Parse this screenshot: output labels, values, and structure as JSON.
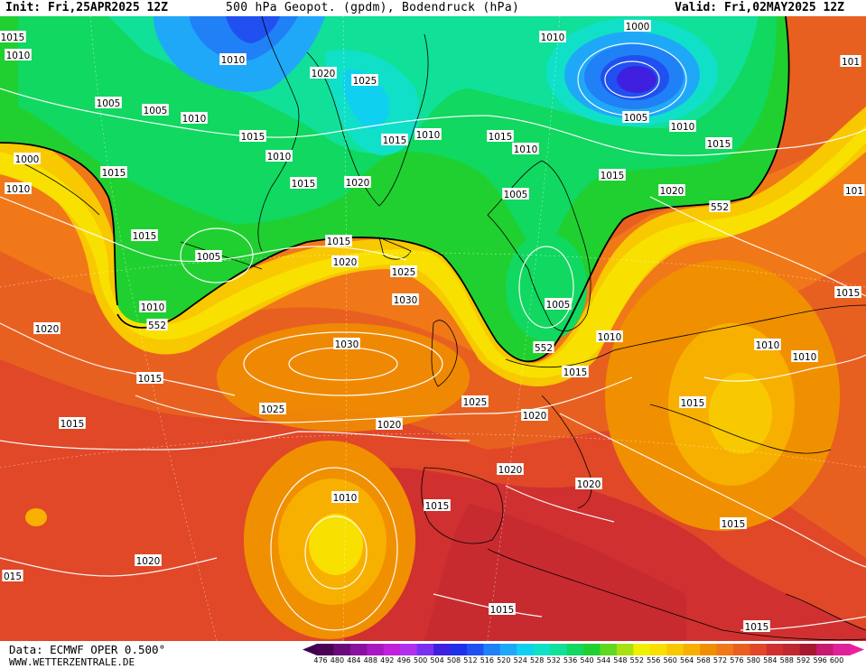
{
  "header": {
    "init": "Init: Fri,25APR2025 12Z",
    "title": "500 hPa Geopot. (gpdm), Bodendruck (hPa)",
    "valid": "Valid: Fri,02MAY2025 12Z"
  },
  "footer": {
    "data_source": "Data: ECMWF OPER 0.500°",
    "website": "WWW.WETTERZENTRALE.DE"
  },
  "legend": {
    "values": [
      "476",
      "480",
      "484",
      "488",
      "492",
      "496",
      "500",
      "504",
      "508",
      "512",
      "516",
      "520",
      "524",
      "528",
      "532",
      "536",
      "540",
      "544",
      "548",
      "552",
      "556",
      "560",
      "564",
      "568",
      "572",
      "576",
      "580",
      "584",
      "588",
      "592",
      "596",
      "600"
    ],
    "colors": [
      "#4b0055",
      "#6a0a7a",
      "#8a10a0",
      "#a818c2",
      "#c020dc",
      "#b030f0",
      "#7a30f0",
      "#4020e0",
      "#2030e8",
      "#2050f0",
      "#2080f5",
      "#20a8f8",
      "#10d0f0",
      "#10e0c8",
      "#10e098",
      "#10d860",
      "#20d030",
      "#60d820",
      "#a8e010",
      "#f0f000",
      "#f8e000",
      "#f8c800",
      "#f8b000",
      "#f09000",
      "#f07818",
      "#e86020",
      "#e04828",
      "#d03030",
      "#c02830",
      "#a81830",
      "#c81870",
      "#e0209a"
    ],
    "arrow_left": "#400050",
    "arrow_right": "#e820a0"
  },
  "isobar_labels": [
    {
      "text": "1015"
    },
    {
      "text": "1010"
    },
    {
      "text": "1010"
    },
    {
      "text": "1020"
    },
    {
      "text": "1025"
    },
    {
      "text": "1010"
    },
    {
      "text": "1000"
    },
    {
      "text": "101"
    },
    {
      "text": "1005"
    },
    {
      "text": "1005"
    },
    {
      "text": "1010"
    },
    {
      "text": "1015"
    },
    {
      "text": "1010"
    },
    {
      "text": "1015"
    },
    {
      "text": "1010"
    },
    {
      "text": "1015"
    },
    {
      "text": "1010"
    },
    {
      "text": "1005"
    },
    {
      "text": "1010"
    },
    {
      "text": "1015"
    },
    {
      "text": "1000"
    },
    {
      "text": "1015"
    },
    {
      "text": "1010"
    },
    {
      "text": "1015"
    },
    {
      "text": "1020"
    },
    {
      "text": "1005"
    },
    {
      "text": "1015"
    },
    {
      "text": "1020"
    },
    {
      "text": "552"
    },
    {
      "text": "1015"
    },
    {
      "text": "1005"
    },
    {
      "text": "1015"
    },
    {
      "text": "1020"
    },
    {
      "text": "1025"
    },
    {
      "text": "1010"
    },
    {
      "text": "1030"
    },
    {
      "text": "1005"
    },
    {
      "text": "1015"
    },
    {
      "text": "552"
    },
    {
      "text": "1020"
    },
    {
      "text": "1030"
    },
    {
      "text": "552"
    },
    {
      "text": "1010"
    },
    {
      "text": "1010"
    },
    {
      "text": "1010"
    },
    {
      "text": "1015"
    },
    {
      "text": "1015"
    },
    {
      "text": "1025"
    },
    {
      "text": "1025"
    },
    {
      "text": "1020"
    },
    {
      "text": "1015"
    },
    {
      "text": "1020"
    },
    {
      "text": "1020"
    },
    {
      "text": "1020"
    },
    {
      "text": "1010"
    },
    {
      "text": "1015"
    },
    {
      "text": "1015"
    },
    {
      "text": "015"
    },
    {
      "text": "1020"
    },
    {
      "text": "1015"
    },
    {
      "text": "1015"
    },
    {
      "text": "101"
    },
    {
      "text": "1015"
    }
  ]
}
